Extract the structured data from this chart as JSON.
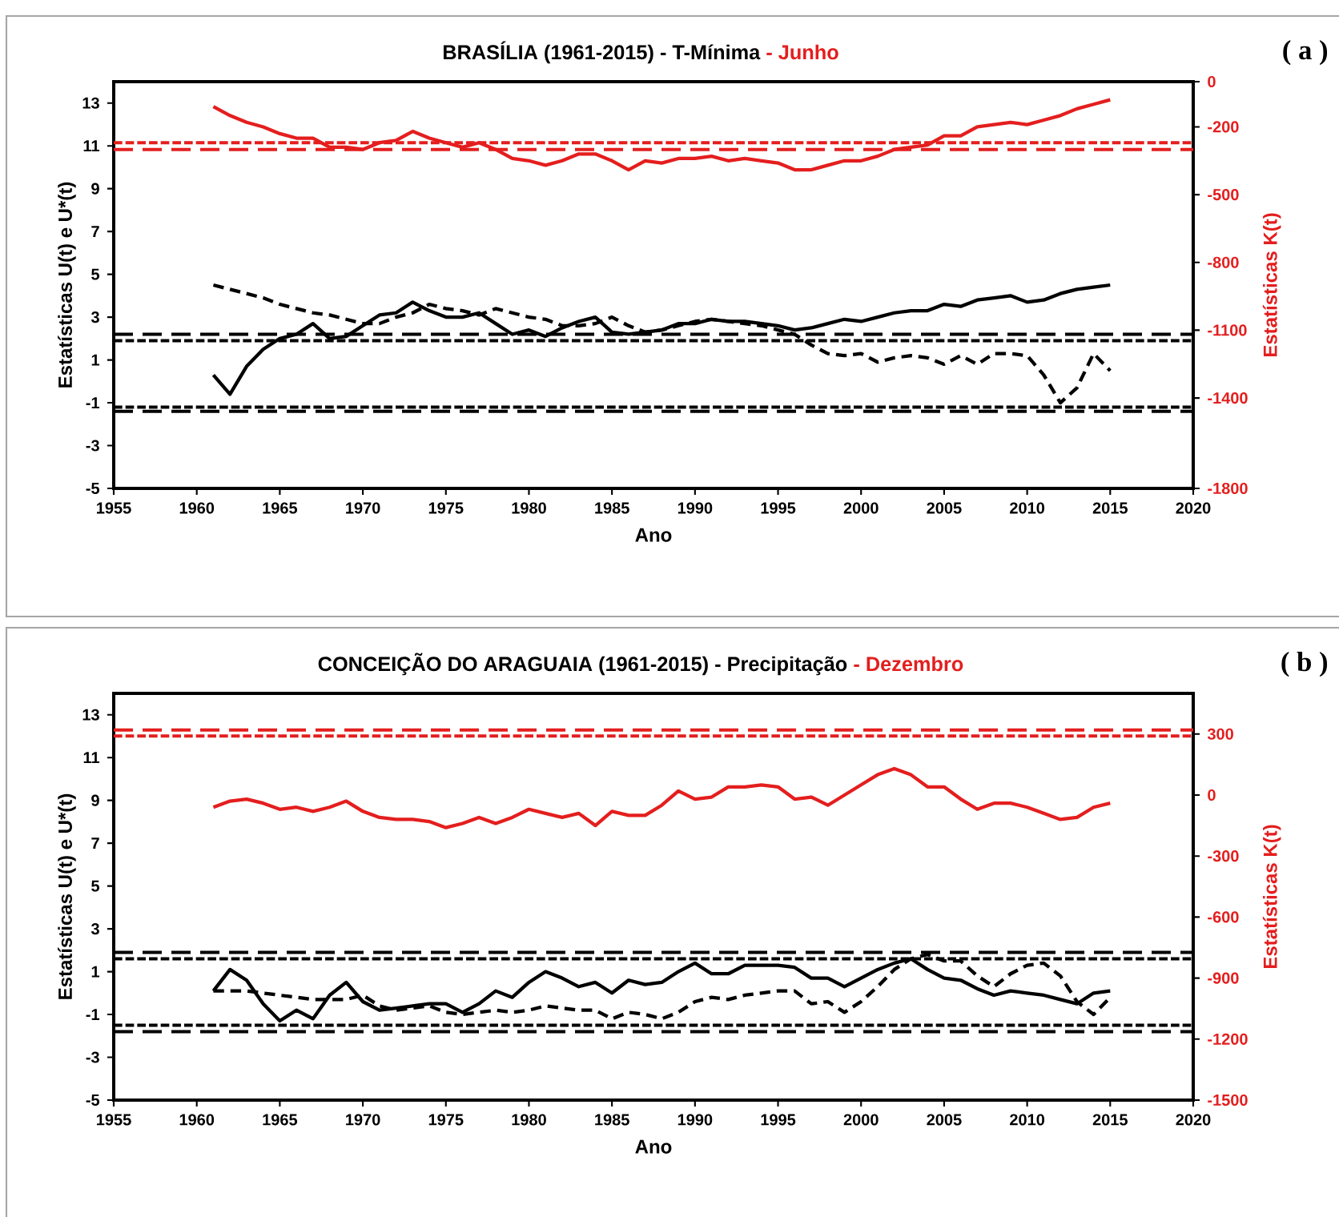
{
  "chart_data": [
    {
      "type": "line",
      "title": "BRASÍLIA (1961-2015) - T-Mínima",
      "subtitle": "- Junho",
      "xlabel": "Ano",
      "ylabel": "Estatísticas U(t) e U*(t)",
      "y2label": "Estatísticas K(t)",
      "annotations": [
        "( a )"
      ],
      "x": [
        1961,
        1962,
        1963,
        1964,
        1965,
        1966,
        1967,
        1968,
        1969,
        1970,
        1971,
        1972,
        1973,
        1974,
        1975,
        1976,
        1977,
        1978,
        1979,
        1980,
        1981,
        1982,
        1983,
        1984,
        1985,
        1986,
        1987,
        1988,
        1989,
        1990,
        1991,
        1992,
        1993,
        1994,
        1995,
        1996,
        1997,
        1998,
        1999,
        2000,
        2001,
        2002,
        2003,
        2004,
        2005,
        2006,
        2007,
        2008,
        2009,
        2010,
        2011,
        2012,
        2013,
        2014,
        2015
      ],
      "xlim": [
        1955,
        2020
      ],
      "xticks": [
        1955,
        1960,
        1965,
        1970,
        1975,
        1980,
        1985,
        1990,
        1995,
        2000,
        2005,
        2010,
        2015,
        2020
      ],
      "ylim": [
        -5,
        14
      ],
      "yticks": [
        -5,
        -3,
        -1,
        1,
        3,
        5,
        7,
        9,
        11,
        13
      ],
      "y2lim": [
        -1800,
        0
      ],
      "y2ticks": [
        -1800,
        -1400,
        -1100,
        -800,
        -500,
        -200,
        0
      ],
      "series": [
        {
          "color": "#000000",
          "line_style": "solid",
          "values": [
            0.3,
            -0.6,
            0.7,
            1.5,
            2.0,
            2.2,
            2.7,
            2.0,
            2.1,
            2.6,
            3.1,
            3.2,
            3.7,
            3.3,
            3.0,
            3.0,
            3.2,
            2.7,
            2.2,
            2.4,
            2.1,
            2.5,
            2.8,
            3.0,
            2.3,
            2.2,
            2.3,
            2.4,
            2.7,
            2.7,
            2.9,
            2.8,
            2.8,
            2.7,
            2.6,
            2.4,
            2.5,
            2.7,
            2.9,
            2.8,
            3.0,
            3.2,
            3.3,
            3.3,
            3.6,
            3.5,
            3.8,
            3.9,
            4.0,
            3.7,
            3.8,
            4.1,
            4.3,
            4.4,
            4.5
          ]
        },
        {
          "color": "#000000",
          "line_style": "dashed",
          "values": [
            4.5,
            4.3,
            4.1,
            3.9,
            3.6,
            3.4,
            3.2,
            3.1,
            2.9,
            2.7,
            2.7,
            3.0,
            3.2,
            3.6,
            3.4,
            3.3,
            3.1,
            3.4,
            3.2,
            3.0,
            2.9,
            2.6,
            2.6,
            2.7,
            3.0,
            2.6,
            2.3,
            2.4,
            2.6,
            2.8,
            2.9,
            2.8,
            2.7,
            2.6,
            2.4,
            2.2,
            1.7,
            1.3,
            1.2,
            1.3,
            0.9,
            1.1,
            1.2,
            1.1,
            0.8,
            1.2,
            0.8,
            1.3,
            1.3,
            1.2,
            0.3,
            -1.0,
            -0.3,
            1.3,
            0.5
          ]
        },
        {
          "color": "#e41e1e",
          "line_style": "solid",
          "axis": "y2",
          "values": [
            -110,
            -150,
            -180,
            -200,
            -230,
            -250,
            -250,
            -290,
            -290,
            -300,
            -270,
            -260,
            -220,
            -250,
            -270,
            -290,
            -270,
            -300,
            -340,
            -350,
            -370,
            -350,
            -320,
            -320,
            -350,
            -390,
            -350,
            -360,
            -340,
            -340,
            -330,
            -350,
            -340,
            -350,
            -360,
            -390,
            -390,
            -370,
            -350,
            -350,
            -330,
            -300,
            -290,
            -280,
            -240,
            -240,
            -200,
            -190,
            -180,
            -190,
            -170,
            -150,
            -120,
            -100,
            -80
          ]
        }
      ],
      "ref_lines": [
        {
          "axis": "y",
          "value": 2.2,
          "color": "#000000",
          "line_style": "dashed"
        },
        {
          "axis": "y",
          "value": 1.9,
          "color": "#000000",
          "line_style": "dotted"
        },
        {
          "axis": "y",
          "value": -1.2,
          "color": "#000000",
          "line_style": "dotted"
        },
        {
          "axis": "y",
          "value": -1.4,
          "color": "#000000",
          "line_style": "dashed"
        },
        {
          "axis": "y2",
          "value": -270,
          "color": "#e41e1e",
          "line_style": "dotted"
        },
        {
          "axis": "y2",
          "value": -300,
          "color": "#e41e1e",
          "line_style": "dashed"
        }
      ]
    },
    {
      "type": "line",
      "title": "CONCEIÇÃO DO ARAGUAIA (1961-2015) - Precipitação",
      "subtitle": "- Dezembro",
      "xlabel": "Ano",
      "ylabel": "Estatísticas U(t) e U*(t)",
      "y2label": "Estatísticas K(t)",
      "annotations": [
        "( b )"
      ],
      "x": [
        1961,
        1962,
        1963,
        1964,
        1965,
        1966,
        1967,
        1968,
        1969,
        1970,
        1971,
        1972,
        1973,
        1974,
        1975,
        1976,
        1977,
        1978,
        1979,
        1980,
        1981,
        1982,
        1983,
        1984,
        1985,
        1986,
        1987,
        1988,
        1989,
        1990,
        1991,
        1992,
        1993,
        1994,
        1995,
        1996,
        1997,
        1998,
        1999,
        2000,
        2001,
        2002,
        2003,
        2004,
        2005,
        2006,
        2007,
        2008,
        2009,
        2010,
        2011,
        2012,
        2013,
        2014,
        2015
      ],
      "xlim": [
        1955,
        2020
      ],
      "xticks": [
        1955,
        1960,
        1965,
        1970,
        1975,
        1980,
        1985,
        1990,
        1995,
        2000,
        2005,
        2010,
        2015,
        2020
      ],
      "ylim": [
        -5,
        14
      ],
      "yticks": [
        -5,
        -3,
        -1,
        1,
        3,
        5,
        7,
        9,
        11,
        13
      ],
      "y2lim": [
        -1500,
        500
      ],
      "y2ticks": [
        -1500,
        -1200,
        -900,
        -600,
        -300,
        0,
        300
      ],
      "series": [
        {
          "color": "#000000",
          "line_style": "solid",
          "values": [
            0.1,
            1.1,
            0.6,
            -0.5,
            -1.3,
            -0.8,
            -1.2,
            -0.1,
            0.5,
            -0.4,
            -0.8,
            -0.7,
            -0.6,
            -0.5,
            -0.5,
            -0.9,
            -0.5,
            0.1,
            -0.2,
            0.5,
            1.0,
            0.7,
            0.3,
            0.5,
            0.0,
            0.6,
            0.4,
            0.5,
            1.0,
            1.4,
            0.9,
            0.9,
            1.3,
            1.3,
            1.3,
            1.2,
            0.7,
            0.7,
            0.3,
            0.7,
            1.1,
            1.4,
            1.6,
            1.1,
            0.7,
            0.6,
            0.2,
            -0.1,
            0.1,
            0.0,
            -0.1,
            -0.3,
            -0.5,
            0.0,
            0.1
          ]
        },
        {
          "color": "#000000",
          "line_style": "dashed",
          "values": [
            0.1,
            0.1,
            0.1,
            0.0,
            -0.1,
            -0.2,
            -0.3,
            -0.3,
            -0.3,
            -0.1,
            -0.6,
            -0.8,
            -0.7,
            -0.6,
            -0.9,
            -1.0,
            -0.9,
            -0.8,
            -0.9,
            -0.8,
            -0.6,
            -0.7,
            -0.8,
            -0.8,
            -1.2,
            -0.9,
            -1.0,
            -1.2,
            -0.9,
            -0.4,
            -0.2,
            -0.3,
            -0.1,
            0.0,
            0.1,
            0.1,
            -0.5,
            -0.4,
            -0.9,
            -0.4,
            0.3,
            1.1,
            1.6,
            1.8,
            1.5,
            1.5,
            0.8,
            0.3,
            0.9,
            1.3,
            1.4,
            0.8,
            -0.4,
            -1.0,
            -0.2
          ]
        },
        {
          "color": "#e41e1e",
          "line_style": "solid",
          "axis": "y2",
          "values": [
            -60,
            -30,
            -20,
            -40,
            -70,
            -60,
            -80,
            -60,
            -30,
            -80,
            -110,
            -120,
            -120,
            -130,
            -160,
            -140,
            -110,
            -140,
            -110,
            -70,
            -90,
            -110,
            -90,
            -150,
            -80,
            -100,
            -100,
            -50,
            20,
            -20,
            -10,
            40,
            40,
            50,
            40,
            -20,
            -10,
            -50,
            0,
            50,
            100,
            130,
            100,
            40,
            40,
            -20,
            -70,
            -40,
            -40,
            -60,
            -90,
            -120,
            -110,
            -60,
            -40
          ]
        }
      ],
      "ref_lines": [
        {
          "axis": "y",
          "value": 1.9,
          "color": "#000000",
          "line_style": "dashed"
        },
        {
          "axis": "y",
          "value": 1.6,
          "color": "#000000",
          "line_style": "dotted"
        },
        {
          "axis": "y",
          "value": -1.5,
          "color": "#000000",
          "line_style": "dotted"
        },
        {
          "axis": "y",
          "value": -1.8,
          "color": "#000000",
          "line_style": "dashed"
        },
        {
          "axis": "y2",
          "value": 320,
          "color": "#e41e1e",
          "line_style": "dashed"
        },
        {
          "axis": "y2",
          "value": 290,
          "color": "#e41e1e",
          "line_style": "dotted"
        }
      ]
    }
  ]
}
